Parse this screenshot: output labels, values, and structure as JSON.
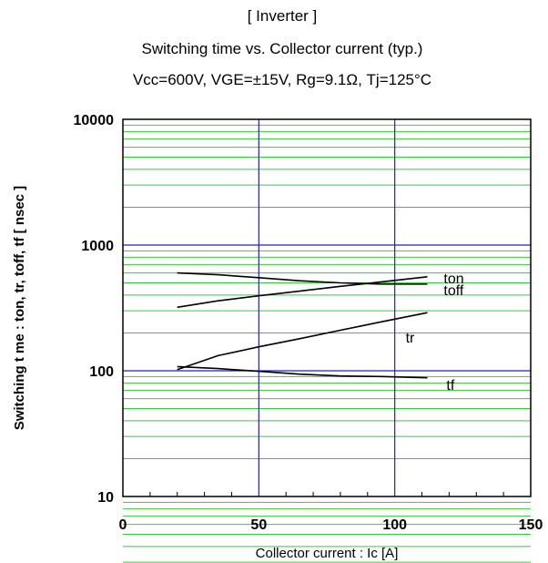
{
  "chart_data": {
    "type": "line",
    "title": "[ Inverter ]",
    "subtitle": "Switching time  vs.  Collector current  (typ.)",
    "conditions": "Vcc=600V, VGE=±15V, Rg=9.1Ω, Tj=125°C",
    "xlabel": "Collector current : Ic [A]",
    "ylabel": "Switching t me  :  ton, tr, toff, tf  [ nsec ]",
    "xlim": [
      0,
      150
    ],
    "ylim": [
      10,
      10000
    ],
    "yscale": "log",
    "grid": true,
    "x_ticks": [
      "0",
      "50",
      "100",
      "150"
    ],
    "y_ticks": [
      "10",
      "100",
      "1000",
      "10000"
    ],
    "series": [
      {
        "name": "ton",
        "x": [
          20,
          35,
          50,
          65,
          80,
          95,
          112
        ],
        "y": [
          320,
          360,
          395,
          430,
          470,
          510,
          560
        ]
      },
      {
        "name": "toff",
        "x": [
          20,
          35,
          50,
          65,
          80,
          95,
          112
        ],
        "y": [
          600,
          580,
          550,
          520,
          500,
          490,
          490
        ]
      },
      {
        "name": "tr",
        "x": [
          20,
          27,
          35,
          50,
          65,
          80,
          95,
          112
        ],
        "y": [
          102,
          115,
          132,
          155,
          180,
          210,
          245,
          290
        ]
      },
      {
        "name": "tf",
        "x": [
          20,
          35,
          50,
          65,
          80,
          95,
          112
        ],
        "y": [
          108,
          104,
          99,
          94,
          91,
          90,
          88
        ]
      }
    ],
    "label_positions": {
      "ton": [
        118,
        550
      ],
      "toff": [
        118,
        440
      ],
      "tr": [
        104,
        185
      ],
      "tf": [
        119,
        78
      ]
    }
  }
}
